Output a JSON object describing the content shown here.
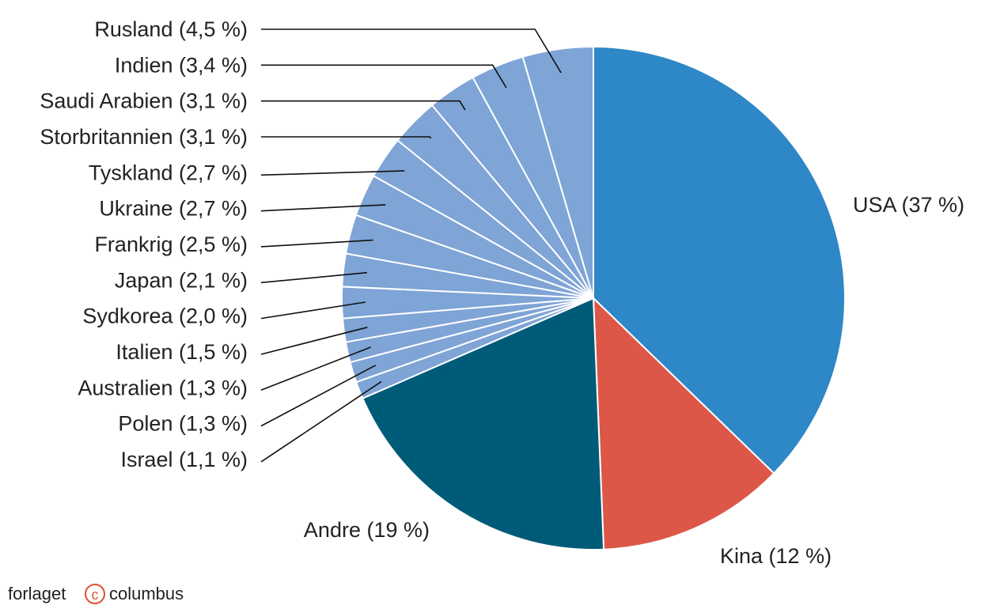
{
  "brand": {
    "left": "forlaget",
    "mark": "c",
    "right": "columbus"
  },
  "chart_data": {
    "type": "pie",
    "slices": [
      {
        "name": "USA",
        "label": "USA (37 %)",
        "value": 37,
        "color": "#2e87c6"
      },
      {
        "name": "Kina",
        "label": "Kina (12 %)",
        "value": 12,
        "color": "#dd5748"
      },
      {
        "name": "Andre",
        "label": "Andre (19 %)",
        "value": 19,
        "color": "#005b79"
      },
      {
        "name": "Israel",
        "label": "Israel (1,1 %)",
        "value": 1.1,
        "color": "#7fa4d6"
      },
      {
        "name": "Polen",
        "label": "Polen (1,3 %)",
        "value": 1.3,
        "color": "#7fa4d6"
      },
      {
        "name": "Australien",
        "label": "Australien (1,3 %)",
        "value": 1.3,
        "color": "#7fa4d6"
      },
      {
        "name": "Italien",
        "label": "Italien (1,5 %)",
        "value": 1.5,
        "color": "#7fa4d6"
      },
      {
        "name": "Sydkorea",
        "label": "Sydkorea (2,0 %)",
        "value": 2.0,
        "color": "#7fa4d6"
      },
      {
        "name": "Japan",
        "label": "Japan (2,1 %)",
        "value": 2.1,
        "color": "#7fa4d6"
      },
      {
        "name": "Frankrig",
        "label": "Frankrig (2,5 %)",
        "value": 2.5,
        "color": "#7fa4d6"
      },
      {
        "name": "Ukraine",
        "label": "Ukraine (2,7 %)",
        "value": 2.7,
        "color": "#7fa4d6"
      },
      {
        "name": "Tyskland",
        "label": "Tyskland (2,7 %)",
        "value": 2.7,
        "color": "#7fa4d6"
      },
      {
        "name": "Storbritannien",
        "label": "Storbritannien (3,1 %)",
        "value": 3.1,
        "color": "#7fa4d6"
      },
      {
        "name": "Saudi Arabien",
        "label": "Saudi Arabien (3,1 %)",
        "value": 3.1,
        "color": "#7fa4d6"
      },
      {
        "name": "Indien",
        "label": "Indien (3,4 %)",
        "value": 3.4,
        "color": "#7fa4d6"
      },
      {
        "name": "Rusland",
        "label": "Rusland (4,5 %)",
        "value": 4.5,
        "color": "#7fa4d6"
      }
    ]
  }
}
